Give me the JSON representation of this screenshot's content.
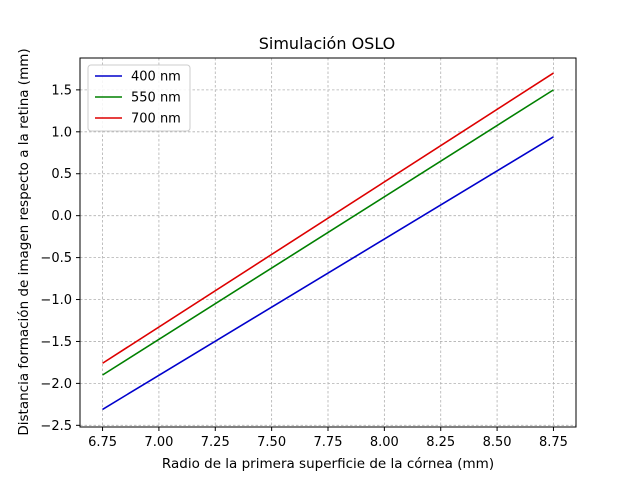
{
  "chart_data": {
    "type": "line",
    "title": "Simulación OSLO",
    "xlabel": "Radio de la primera superficie de la córnea (mm)",
    "ylabel": "Distancia formación de imagen respecto a la retina (mm)",
    "xlim": [
      6.65,
      8.85
    ],
    "ylim": [
      -2.52,
      1.88
    ],
    "xticks": [
      "6.75",
      "7.00",
      "7.25",
      "7.50",
      "7.75",
      "8.00",
      "8.25",
      "8.50",
      "8.75"
    ],
    "yticks": [
      "-2.5",
      "-2.0",
      "-1.5",
      "-1.0",
      "-0.5",
      "0.0",
      "0.5",
      "1.0",
      "1.5"
    ],
    "grid": true,
    "legend_position": "top-left",
    "series": [
      {
        "name": "400 nm",
        "color": "#0000cc",
        "x": [
          6.75,
          8.75
        ],
        "y": [
          -2.31,
          0.94
        ]
      },
      {
        "name": "550 nm",
        "color": "#008000",
        "x": [
          6.75,
          8.75
        ],
        "y": [
          -1.9,
          1.5
        ]
      },
      {
        "name": "700 nm",
        "color": "#dd0000",
        "x": [
          6.75,
          8.75
        ],
        "y": [
          -1.76,
          1.7
        ]
      }
    ]
  }
}
